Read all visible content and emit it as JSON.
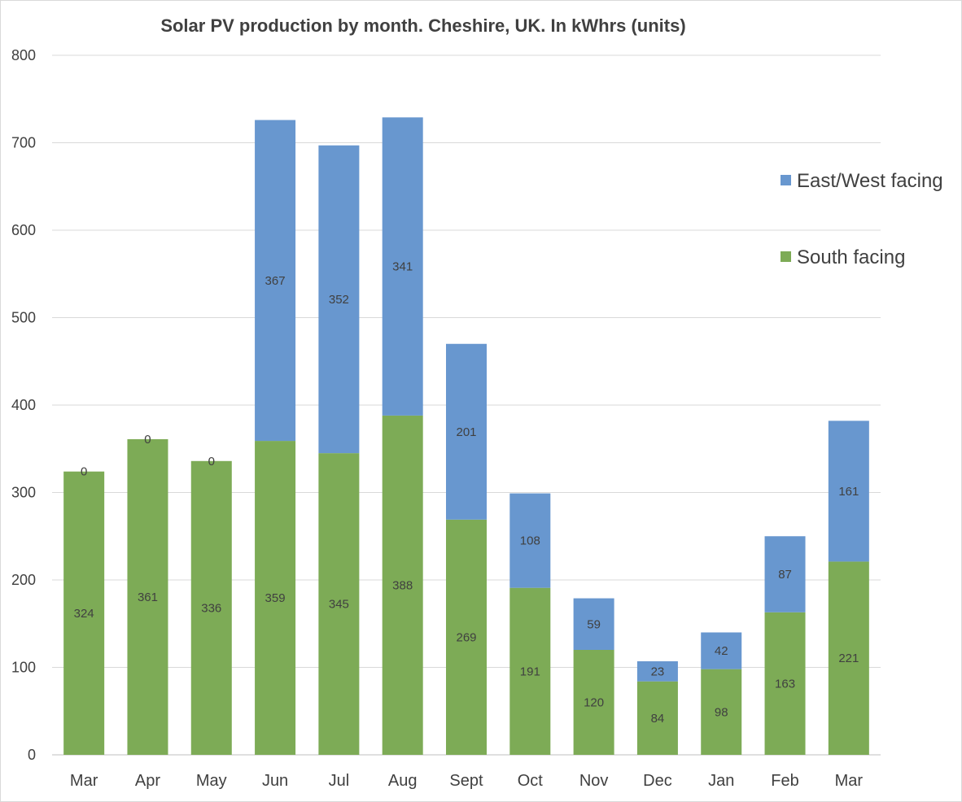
{
  "chart_data": {
    "type": "bar",
    "stacked": true,
    "title": "Solar PV production by month. Cheshire, UK. In kWhrs (units)",
    "xlabel": "",
    "ylabel": "",
    "ylim": [
      0,
      800
    ],
    "yticks": [
      0,
      100,
      200,
      300,
      400,
      500,
      600,
      700,
      800
    ],
    "grid": true,
    "legend_position": "right",
    "categories": [
      "Mar",
      "Apr",
      "May",
      "Jun",
      "Jul",
      "Aug",
      "Sept",
      "Oct",
      "Nov",
      "Dec",
      "Jan",
      "Feb",
      "Mar"
    ],
    "series": [
      {
        "name": "South facing",
        "color": "#7dab56",
        "values": [
          324,
          361,
          336,
          359,
          345,
          388,
          269,
          191,
          120,
          84,
          98,
          163,
          221
        ]
      },
      {
        "name": "East/West facing",
        "color": "#6897cf",
        "values": [
          0,
          0,
          0,
          367,
          352,
          341,
          201,
          108,
          59,
          23,
          42,
          87,
          161
        ]
      }
    ],
    "legend": [
      "East/West facing",
      "South facing"
    ]
  }
}
